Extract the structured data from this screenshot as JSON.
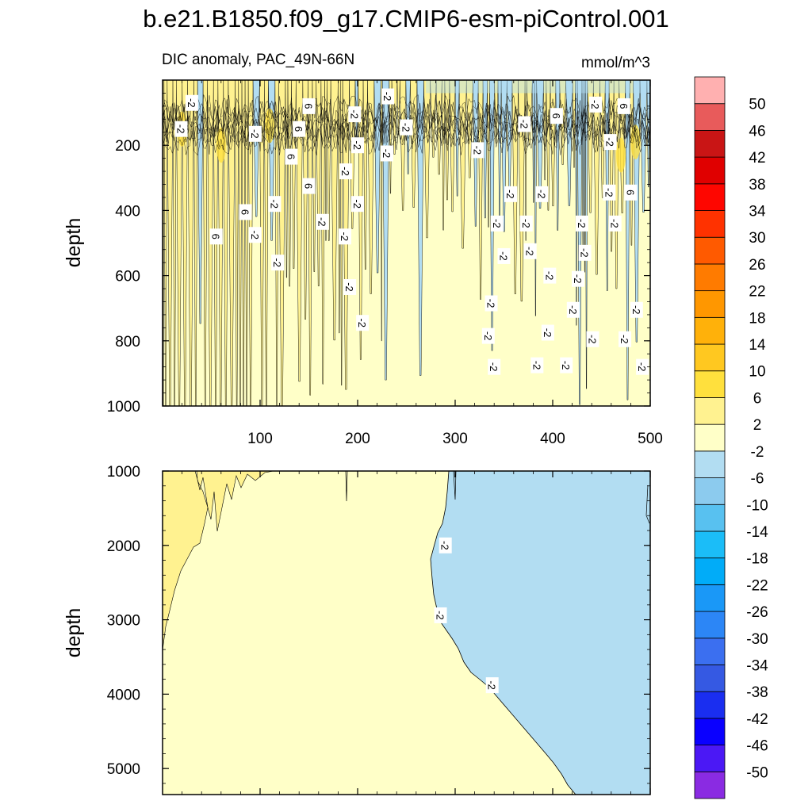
{
  "chart_data": {
    "type": "contour",
    "title": "b.e21.B1850.f09_g17.CMIP6-esm-piControl.001",
    "subtitle_left": "DIC anomaly, PAC_49N-66N",
    "units": "mmol/m^3",
    "xlabel": "",
    "ylabel": "depth",
    "xlim": [
      0,
      500
    ],
    "x_ticks": [
      "100",
      "200",
      "300",
      "400",
      "500"
    ],
    "panels": [
      {
        "name": "upper",
        "ylim": [
          0,
          1000
        ],
        "y_ticks": [
          "200",
          "400",
          "600",
          "800",
          "1000"
        ],
        "contour_labels": [
          {
            "x": 30,
            "d": 70,
            "text": "-2"
          },
          {
            "x": 19,
            "d": 150,
            "text": "-2"
          },
          {
            "x": 95,
            "d": 165,
            "text": "-2"
          },
          {
            "x": 150,
            "d": 80,
            "text": "6"
          },
          {
            "x": 140,
            "d": 150,
            "text": "6"
          },
          {
            "x": 132,
            "d": 235,
            "text": "6"
          },
          {
            "x": 150,
            "d": 325,
            "text": "6"
          },
          {
            "x": 197,
            "d": 105,
            "text": "-2"
          },
          {
            "x": 200,
            "d": 200,
            "text": "-2"
          },
          {
            "x": 188,
            "d": 280,
            "text": "-2"
          },
          {
            "x": 231,
            "d": 50,
            "text": "-2"
          },
          {
            "x": 250,
            "d": 145,
            "text": "-2"
          },
          {
            "x": 230,
            "d": 225,
            "text": "-2"
          },
          {
            "x": 323,
            "d": 215,
            "text": "-2"
          },
          {
            "x": 115,
            "d": 380,
            "text": "-2"
          },
          {
            "x": 85,
            "d": 405,
            "text": "6"
          },
          {
            "x": 95,
            "d": 475,
            "text": "-2"
          },
          {
            "x": 55,
            "d": 480,
            "text": "6"
          },
          {
            "x": 164,
            "d": 435,
            "text": "-2"
          },
          {
            "x": 200,
            "d": 380,
            "text": "-2"
          },
          {
            "x": 187,
            "d": 480,
            "text": "-2"
          },
          {
            "x": 118,
            "d": 560,
            "text": "-2"
          },
          {
            "x": 192,
            "d": 635,
            "text": "-2"
          },
          {
            "x": 205,
            "d": 745,
            "text": "-2"
          },
          {
            "x": 357,
            "d": 350,
            "text": "-2"
          },
          {
            "x": 343,
            "d": 440,
            "text": "-2"
          },
          {
            "x": 350,
            "d": 540,
            "text": "-2"
          },
          {
            "x": 373,
            "d": 440,
            "text": "-2"
          },
          {
            "x": 377,
            "d": 525,
            "text": "-2"
          },
          {
            "x": 389,
            "d": 350,
            "text": "-2"
          },
          {
            "x": 397,
            "d": 600,
            "text": "-2"
          },
          {
            "x": 430,
            "d": 440,
            "text": "-2"
          },
          {
            "x": 433,
            "d": 530,
            "text": "-2"
          },
          {
            "x": 426,
            "d": 610,
            "text": "-2"
          },
          {
            "x": 421,
            "d": 705,
            "text": "-2"
          },
          {
            "x": 458,
            "d": 345,
            "text": "-2"
          },
          {
            "x": 464,
            "d": 440,
            "text": "-2"
          },
          {
            "x": 480,
            "d": 345,
            "text": "6"
          },
          {
            "x": 337,
            "d": 685,
            "text": "-2"
          },
          {
            "x": 334,
            "d": 785,
            "text": "-2"
          },
          {
            "x": 340,
            "d": 880,
            "text": "-2"
          },
          {
            "x": 395,
            "d": 775,
            "text": "-2"
          },
          {
            "x": 384,
            "d": 875,
            "text": "-2"
          },
          {
            "x": 414,
            "d": 875,
            "text": "-2"
          },
          {
            "x": 441,
            "d": 795,
            "text": "-2"
          },
          {
            "x": 474,
            "d": 795,
            "text": "-2"
          },
          {
            "x": 486,
            "d": 705,
            "text": "-2"
          },
          {
            "x": 492,
            "d": 880,
            "text": "-2"
          },
          {
            "x": 371,
            "d": 135,
            "text": "-2"
          },
          {
            "x": 404,
            "d": 110,
            "text": "6"
          },
          {
            "x": 444,
            "d": 75,
            "text": "-2"
          },
          {
            "x": 473,
            "d": 80,
            "text": "6"
          },
          {
            "x": 459,
            "d": 190,
            "text": "-2"
          }
        ]
      },
      {
        "name": "lower",
        "ylim": [
          1000,
          5350
        ],
        "y_ticks": [
          "1000",
          "2000",
          "3000",
          "4000",
          "5000"
        ],
        "contour_labels": [
          {
            "x": 290,
            "d": 2000,
            "text": "-2"
          },
          {
            "x": 285,
            "d": 2940,
            "text": "-2"
          },
          {
            "x": 338,
            "d": 3880,
            "text": "-2"
          }
        ]
      }
    ],
    "colorbar": {
      "levels": [
        "-50",
        "-46",
        "-42",
        "-38",
        "-34",
        "-30",
        "-26",
        "-22",
        "-18",
        "-14",
        "-10",
        "-6",
        "-2",
        "2",
        "6",
        "10",
        "14",
        "18",
        "22",
        "26",
        "30",
        "34",
        "38",
        "42",
        "46",
        "50"
      ],
      "colors": [
        "#8a2be2",
        "#4b18f5",
        "#0a00ff",
        "#1a2ef0",
        "#3559e3",
        "#3b6ff0",
        "#2c86f6",
        "#1a98f7",
        "#01acf8",
        "#1bbdf8",
        "#58c1f0",
        "#8ccbee",
        "#b2ddf2",
        "#ffffc8",
        "#fff290",
        "#ffe03d",
        "#ffc820",
        "#ffb10a",
        "#ff9700",
        "#ff7b00",
        "#ff5a00",
        "#ff3200",
        "#fe0600",
        "#e00000",
        "#c91515",
        "#e85b5b",
        "#ffb0b0"
      ]
    },
    "field_colors": {
      "neutral": "#ffffc8",
      "positive": "#fff290",
      "negative": "#b2ddf2",
      "line": "#000000"
    }
  }
}
